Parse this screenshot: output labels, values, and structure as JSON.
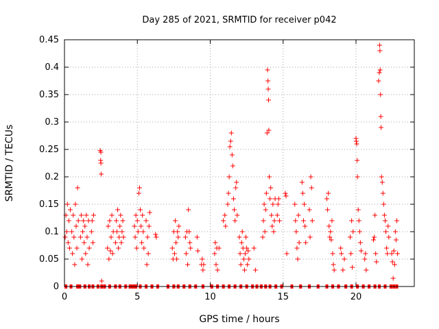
{
  "chart_data": {
    "type": "scatter",
    "title": "Day 285 of 2021, SRMTID for receiver p042",
    "xlabel": "GPS time / hours",
    "ylabel": "SRMTID / TECUs",
    "xlim": [
      0,
      24
    ],
    "ylim": [
      0,
      0.45
    ],
    "xticks": [
      "0",
      "5",
      "10",
      "15",
      "20"
    ],
    "yticks": [
      "0",
      "0.05",
      "0.1",
      "0.15",
      "0.2",
      "0.25",
      "0.3",
      "0.35",
      "0.4",
      "0.45"
    ],
    "grid": true,
    "marker": "+",
    "color": "#ff0000",
    "series": [
      {
        "name": "p042",
        "points": [
          [
            0.05,
            0.09
          ],
          [
            0.1,
            0.13
          ],
          [
            0.15,
            0.1
          ],
          [
            0.2,
            0.15
          ],
          [
            0.25,
            0.08
          ],
          [
            0.3,
            0.12
          ],
          [
            0.35,
            0.07
          ],
          [
            0.4,
            0.14
          ],
          [
            0.5,
            0.1
          ],
          [
            0.55,
            0.06
          ],
          [
            0.6,
            0.13
          ],
          [
            0.65,
            0.09
          ],
          [
            0.7,
            0.04
          ],
          [
            0.75,
            0.15
          ],
          [
            0.8,
            0.11
          ],
          [
            0.85,
            0.07
          ],
          [
            0.9,
            0.18
          ],
          [
            0.95,
            0.12
          ],
          [
            1.1,
            0.09
          ],
          [
            1.15,
            0.13
          ],
          [
            1.2,
            0.05
          ],
          [
            1.25,
            0.1
          ],
          [
            1.3,
            0.12
          ],
          [
            1.35,
            0.08
          ],
          [
            1.4,
            0.11
          ],
          [
            1.45,
            0.06
          ],
          [
            1.5,
            0.13
          ],
          [
            1.55,
            0.09
          ],
          [
            1.6,
            0.04
          ],
          [
            1.65,
            0.12
          ],
          [
            1.7,
            0.07
          ],
          [
            1.85,
            0.1
          ],
          [
            1.9,
            0.12
          ],
          [
            1.95,
            0.08
          ],
          [
            2.0,
            0.13
          ],
          [
            2.45,
            0.248
          ],
          [
            2.5,
            0.245
          ],
          [
            2.48,
            0.23
          ],
          [
            2.5,
            0.225
          ],
          [
            2.52,
            0.205
          ],
          [
            2.55,
            0.01
          ],
          [
            2.95,
            0.07
          ],
          [
            3.0,
            0.11
          ],
          [
            3.05,
            0.05
          ],
          [
            3.1,
            0.12
          ],
          [
            3.15,
            0.065
          ],
          [
            3.2,
            0.09
          ],
          [
            3.25,
            0.13
          ],
          [
            3.3,
            0.06
          ],
          [
            3.35,
            0.1
          ],
          [
            3.5,
            0.08
          ],
          [
            3.55,
            0.12
          ],
          [
            3.6,
            0.1
          ],
          [
            3.65,
            0.14
          ],
          [
            3.7,
            0.07
          ],
          [
            3.75,
            0.09
          ],
          [
            3.8,
            0.11
          ],
          [
            3.85,
            0.13
          ],
          [
            3.9,
            0.08
          ],
          [
            3.95,
            0.1
          ],
          [
            4.0,
            0.12
          ],
          [
            4.05,
            0.09
          ],
          [
            4.8,
            0.11
          ],
          [
            4.85,
            0.09
          ],
          [
            4.9,
            0.13
          ],
          [
            4.95,
            0.07
          ],
          [
            5.0,
            0.12
          ],
          [
            5.05,
            0.1
          ],
          [
            5.1,
            0.17
          ],
          [
            5.15,
            0.18
          ],
          [
            5.2,
            0.14
          ],
          [
            5.25,
            0.11
          ],
          [
            5.3,
            0.08
          ],
          [
            5.35,
            0.13
          ],
          [
            5.4,
            0.1
          ],
          [
            5.45,
            0.07
          ],
          [
            5.6,
            0.12
          ],
          [
            5.65,
            0.04
          ],
          [
            5.7,
            0.09
          ],
          [
            5.75,
            0.06
          ],
          [
            5.8,
            0.11
          ],
          [
            5.85,
            0.135
          ],
          [
            6.25,
            0.095
          ],
          [
            6.3,
            0.09
          ],
          [
            7.4,
            0.07
          ],
          [
            7.45,
            0.05
          ],
          [
            7.5,
            0.1
          ],
          [
            7.55,
            0.06
          ],
          [
            7.6,
            0.12
          ],
          [
            7.65,
            0.08
          ],
          [
            7.7,
            0.05
          ],
          [
            7.75,
            0.1
          ],
          [
            7.8,
            0.09
          ],
          [
            7.85,
            0.11
          ],
          [
            8.3,
            0.09
          ],
          [
            8.35,
            0.06
          ],
          [
            8.4,
            0.1
          ],
          [
            8.45,
            0.04
          ],
          [
            8.5,
            0.14
          ],
          [
            8.55,
            0.1
          ],
          [
            8.6,
            0.08
          ],
          [
            8.65,
            0.07
          ],
          [
            9.1,
            0.09
          ],
          [
            9.15,
            0.065
          ],
          [
            9.4,
            0.04
          ],
          [
            9.45,
            0.05
          ],
          [
            9.5,
            0.03
          ],
          [
            9.55,
            0.04
          ],
          [
            10.3,
            0.06
          ],
          [
            10.35,
            0.08
          ],
          [
            10.4,
            0.04
          ],
          [
            10.45,
            0.07
          ],
          [
            10.5,
            0.03
          ],
          [
            10.6,
            0.07
          ],
          [
            10.9,
            0.12
          ],
          [
            11.0,
            0.13
          ],
          [
            11.05,
            0.11
          ],
          [
            11.2,
            0.15
          ],
          [
            11.25,
            0.17
          ],
          [
            11.3,
            0.2
          ],
          [
            11.35,
            0.255
          ],
          [
            11.4,
            0.265
          ],
          [
            11.45,
            0.28
          ],
          [
            11.5,
            0.24
          ],
          [
            11.55,
            0.22
          ],
          [
            11.6,
            0.16
          ],
          [
            11.65,
            0.14
          ],
          [
            11.7,
            0.12
          ],
          [
            11.75,
            0.18
          ],
          [
            11.8,
            0.19
          ],
          [
            11.85,
            0.13
          ],
          [
            12.0,
            0.09
          ],
          [
            12.05,
            0.06
          ],
          [
            12.1,
            0.04
          ],
          [
            12.15,
            0.08
          ],
          [
            12.2,
            0.1
          ],
          [
            12.25,
            0.07
          ],
          [
            12.3,
            0.05
          ],
          [
            12.35,
            0.03
          ],
          [
            12.4,
            0.06
          ],
          [
            12.45,
            0.09
          ],
          [
            12.5,
            0.07
          ],
          [
            12.55,
            0.04
          ],
          [
            12.6,
            0.065
          ],
          [
            12.65,
            0.05
          ],
          [
            13.0,
            0.07
          ],
          [
            13.1,
            0.03
          ],
          [
            13.6,
            0.09
          ],
          [
            13.65,
            0.12
          ],
          [
            13.7,
            0.15
          ],
          [
            13.75,
            0.1
          ],
          [
            13.8,
            0.14
          ],
          [
            13.85,
            0.17
          ],
          [
            13.9,
            0.28
          ],
          [
            13.93,
            0.395
          ],
          [
            13.96,
            0.375
          ],
          [
            13.98,
            0.36
          ],
          [
            14.0,
            0.34
          ],
          [
            14.02,
            0.285
          ],
          [
            14.05,
            0.2
          ],
          [
            14.1,
            0.16
          ],
          [
            14.15,
            0.18
          ],
          [
            14.2,
            0.13
          ],
          [
            14.25,
            0.11
          ],
          [
            14.3,
            0.15
          ],
          [
            14.35,
            0.1
          ],
          [
            14.4,
            0.12
          ],
          [
            14.45,
            0.16
          ],
          [
            14.6,
            0.13
          ],
          [
            14.65,
            0.15
          ],
          [
            14.7,
            0.16
          ],
          [
            14.75,
            0.12
          ],
          [
            15.15,
            0.17
          ],
          [
            15.2,
            0.165
          ],
          [
            15.25,
            0.06
          ],
          [
            15.8,
            0.15
          ],
          [
            15.85,
            0.12
          ],
          [
            15.9,
            0.1
          ],
          [
            15.95,
            0.07
          ],
          [
            16.0,
            0.05
          ],
          [
            16.05,
            0.13
          ],
          [
            16.1,
            0.08
          ],
          [
            16.3,
            0.19
          ],
          [
            16.35,
            0.17
          ],
          [
            16.4,
            0.12
          ],
          [
            16.45,
            0.15
          ],
          [
            16.5,
            0.11
          ],
          [
            16.55,
            0.08
          ],
          [
            16.8,
            0.14
          ],
          [
            16.85,
            0.09
          ],
          [
            16.9,
            0.2
          ],
          [
            16.95,
            0.18
          ],
          [
            17.0,
            0.12
          ],
          [
            18.0,
            0.16
          ],
          [
            18.05,
            0.14
          ],
          [
            18.1,
            0.17
          ],
          [
            18.15,
            0.11
          ],
          [
            18.2,
            0.09
          ],
          [
            18.25,
            0.1
          ],
          [
            18.3,
            0.085
          ],
          [
            18.35,
            0.12
          ],
          [
            18.4,
            0.06
          ],
          [
            18.45,
            0.04
          ],
          [
            18.5,
            0.03
          ],
          [
            18.95,
            0.07
          ],
          [
            19.0,
            0.06
          ],
          [
            19.1,
            0.03
          ],
          [
            19.2,
            0.05
          ],
          [
            19.6,
            0.09
          ],
          [
            19.65,
            0.06
          ],
          [
            19.7,
            0.12
          ],
          [
            19.75,
            0.035
          ],
          [
            19.8,
            0.1
          ],
          [
            20.0,
            0.27
          ],
          [
            20.02,
            0.265
          ],
          [
            20.05,
            0.26
          ],
          [
            20.08,
            0.23
          ],
          [
            20.1,
            0.2
          ],
          [
            20.15,
            0.14
          ],
          [
            20.2,
            0.12
          ],
          [
            20.25,
            0.1
          ],
          [
            20.3,
            0.08
          ],
          [
            20.35,
            0.065
          ],
          [
            20.6,
            0.05
          ],
          [
            20.65,
            0.06
          ],
          [
            20.7,
            0.03
          ],
          [
            21.2,
            0.085
          ],
          [
            21.25,
            0.09
          ],
          [
            21.3,
            0.13
          ],
          [
            21.35,
            0.06
          ],
          [
            21.4,
            0.045
          ],
          [
            21.55,
            0.375
          ],
          [
            21.6,
            0.39
          ],
          [
            21.62,
            0.44
          ],
          [
            21.64,
            0.43
          ],
          [
            21.66,
            0.395
          ],
          [
            21.68,
            0.35
          ],
          [
            21.7,
            0.31
          ],
          [
            21.72,
            0.29
          ],
          [
            21.75,
            0.2
          ],
          [
            21.8,
            0.19
          ],
          [
            21.85,
            0.17
          ],
          [
            21.9,
            0.15
          ],
          [
            21.95,
            0.13
          ],
          [
            22.0,
            0.12
          ],
          [
            22.05,
            0.1
          ],
          [
            22.1,
            0.07
          ],
          [
            22.15,
            0.06
          ],
          [
            22.2,
            0.11
          ],
          [
            22.25,
            0.09
          ],
          [
            22.45,
            0.06
          ],
          [
            22.5,
            0.045
          ],
          [
            22.55,
            0.015
          ],
          [
            22.6,
            0.065
          ],
          [
            22.65,
            0.04
          ],
          [
            22.7,
            0.1
          ],
          [
            22.75,
            0.085
          ],
          [
            22.8,
            0.12
          ],
          [
            22.85,
            0.06
          ]
        ],
        "zero_markers_x": [
          0.1,
          0.45,
          0.9,
          1.05,
          1.4,
          1.7,
          1.95,
          2.3,
          2.55,
          2.75,
          3.1,
          3.5,
          3.8,
          4.2,
          4.5,
          4.6,
          4.65,
          4.75,
          4.9,
          5.2,
          5.6,
          6.0,
          6.4,
          7.1,
          7.5,
          7.8,
          8.2,
          8.6,
          9.0,
          9.5,
          10.1,
          10.5,
          10.9,
          11.3,
          11.7,
          12.1,
          12.5,
          12.9,
          13.2,
          13.5,
          13.8,
          14.1,
          14.5,
          14.9,
          15.6,
          16.2,
          16.8,
          17.4,
          18.0,
          18.4,
          18.8,
          19.3,
          19.7,
          20.1,
          20.5,
          20.9,
          21.3,
          21.6,
          22.0,
          22.4,
          22.6,
          22.8
        ]
      }
    ]
  }
}
